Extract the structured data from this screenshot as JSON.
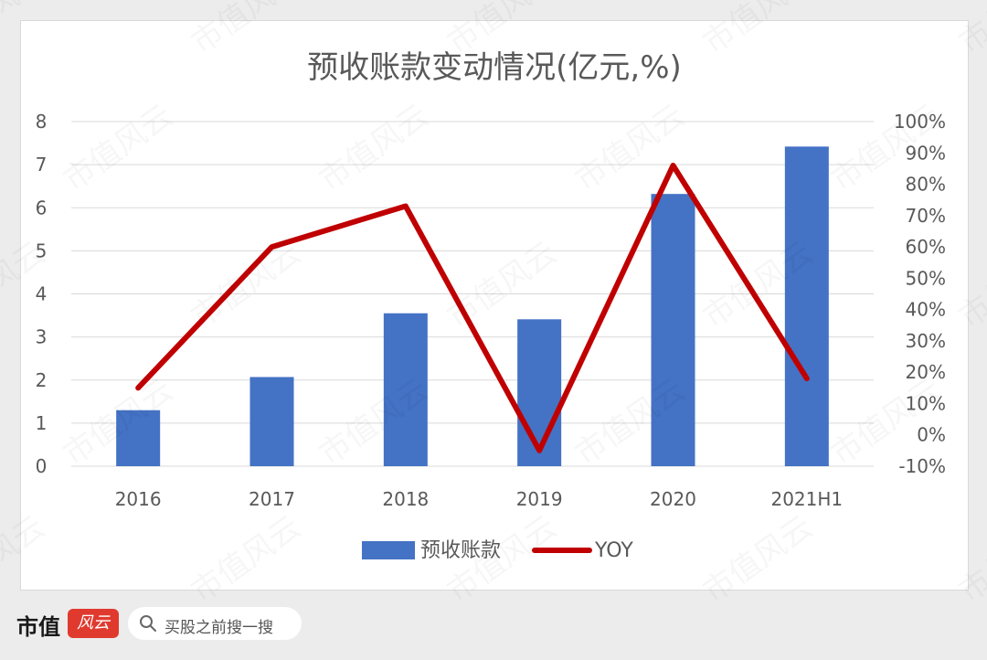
{
  "chart_data": {
    "type": "bar",
    "title": "预收账款变动情况(亿元,%)",
    "categories": [
      "2016",
      "2017",
      "2018",
      "2019",
      "2020",
      "2021H1"
    ],
    "series": [
      {
        "name": "预收账款",
        "type": "bar",
        "axis": "left",
        "color": "#4472c4",
        "values": [
          1.3,
          2.07,
          3.55,
          3.41,
          6.32,
          7.42
        ]
      },
      {
        "name": "YOY",
        "type": "line",
        "axis": "right",
        "color": "#c00000",
        "values": [
          15,
          60,
          73,
          -5,
          86,
          18
        ]
      }
    ],
    "y_left": {
      "min": 0,
      "max": 8,
      "ticks": [
        "0",
        "1",
        "2",
        "3",
        "4",
        "5",
        "6",
        "7",
        "8"
      ]
    },
    "y_right": {
      "min": -10,
      "max": 100,
      "ticks": [
        "-10%",
        "0%",
        "10%",
        "20%",
        "30%",
        "40%",
        "50%",
        "60%",
        "70%",
        "80%",
        "90%",
        "100%"
      ]
    },
    "grid": true,
    "legend_position": "bottom"
  },
  "footer": {
    "brand": "市值",
    "logo_text": "风云",
    "search_placeholder": "买股之前搜一搜"
  },
  "watermark": "市值风云"
}
